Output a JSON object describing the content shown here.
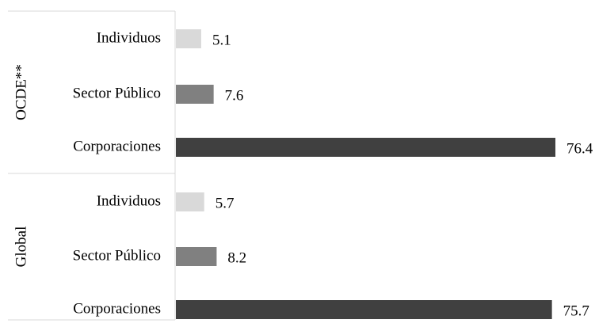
{
  "chart_data": {
    "type": "bar",
    "orientation": "horizontal",
    "groups": [
      {
        "name": "OCDE**",
        "bars": [
          {
            "category": "Individuos",
            "value": 5.1,
            "label": "5.1",
            "color": "#d9d9d9"
          },
          {
            "category": "Sector Público",
            "value": 7.6,
            "label": "7.6",
            "color": "#808080"
          },
          {
            "category": "Corporaciones",
            "value": 76.4,
            "label": "76.4",
            "color": "#404040"
          }
        ]
      },
      {
        "name": "Global",
        "bars": [
          {
            "category": "Individuos",
            "value": 5.7,
            "label": "5.7",
            "color": "#d9d9d9"
          },
          {
            "category": "Sector Público",
            "value": 8.2,
            "label": "8.2",
            "color": "#808080"
          },
          {
            "category": "Corporaciones",
            "value": 75.7,
            "label": "75.7",
            "color": "#404040"
          }
        ]
      }
    ],
    "xlim": [
      0,
      80
    ],
    "grid": false,
    "legend": "none",
    "axis_color": "#d9d9d9"
  }
}
